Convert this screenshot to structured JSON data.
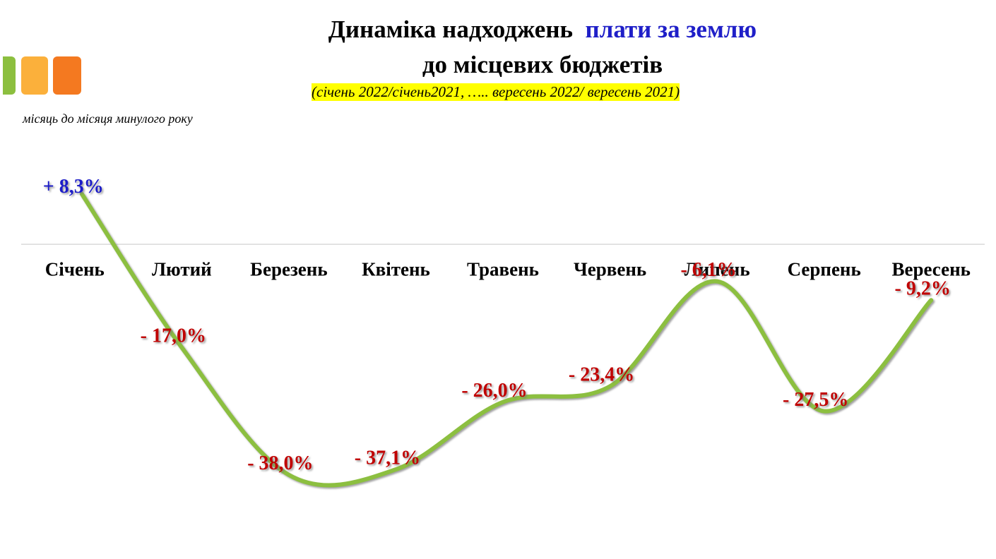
{
  "chart_data": {
    "type": "line",
    "title": "Динаміка надходжень",
    "title_highlight": "плати за землю",
    "title_line2": "до місцевих бюджетів",
    "subtitle": "(січень 2022/січень2021, ….. вересень 2022/ вересень 2021)",
    "note": "місяць до місяця минулого року",
    "categories": [
      "Січень",
      "Лютий",
      "Березень",
      "Квітень",
      "Травень",
      "Червень",
      "Липень",
      "Серпень",
      "Вересень"
    ],
    "values": [
      8.3,
      -17.0,
      -38.0,
      -37.1,
      -26.0,
      -23.4,
      -6.1,
      -27.5,
      -9.2
    ],
    "value_labels": [
      "+ 8,3%",
      "- 17,0%",
      "- 38,0%",
      "- 37,1%",
      "- 26,0%",
      "- 23,4%",
      "- 6,1%",
      "- 27,5%",
      "- 9,2%"
    ],
    "color": "#8cbf3f",
    "positive_label_color": "#1f1fc8",
    "negative_label_color": "#c00000",
    "ylim": [
      -45,
      17
    ]
  }
}
